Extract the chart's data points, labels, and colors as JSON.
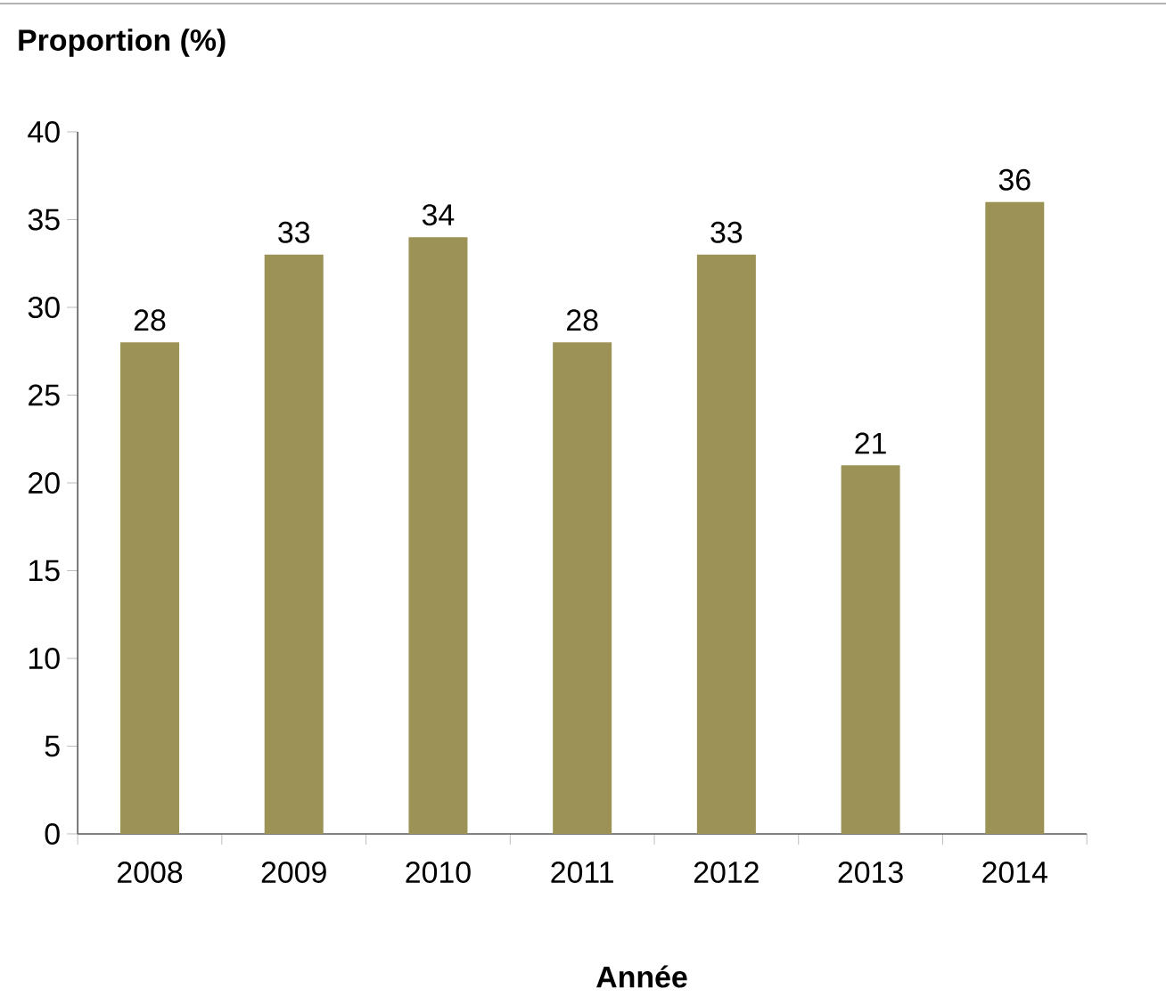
{
  "chart_data": {
    "type": "bar",
    "ylabel": "Proportion (%)",
    "xlabel": "Année",
    "categories": [
      "2008",
      "2009",
      "2010",
      "2011",
      "2012",
      "2013",
      "2014"
    ],
    "values": [
      28,
      33,
      34,
      28,
      33,
      21,
      36
    ],
    "color": "#9c9256",
    "ylim": [
      0,
      40
    ],
    "yticks": [
      0,
      5,
      10,
      15,
      20,
      25,
      30,
      35,
      40
    ],
    "grid": false,
    "data_labels": true
  }
}
